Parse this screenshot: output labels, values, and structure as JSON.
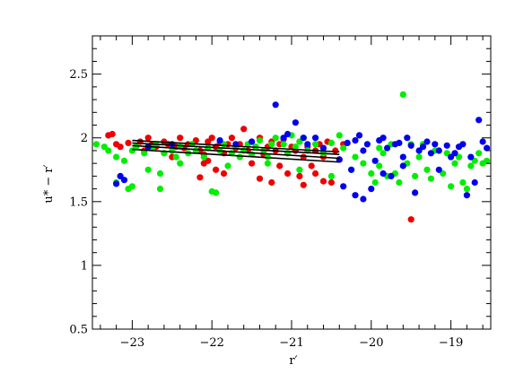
{
  "chart_data": {
    "type": "scatter",
    "title": "",
    "xlabel": "r′",
    "ylabel": "u* − r′",
    "xlim": [
      -23.5,
      -18.5
    ],
    "ylim": [
      0.5,
      2.8
    ],
    "x_ticks": [
      "−23",
      "−22",
      "−21",
      "−20",
      "−19"
    ],
    "y_ticks": [
      "0.5",
      "1",
      "1.5",
      "2",
      "2.5"
    ],
    "grid": false,
    "legend": "none",
    "colors": {
      "red": "#ee0000",
      "green": "#00ee00",
      "blue": "#0000ee",
      "line": "#000000",
      "axis": "#000000"
    },
    "series": [
      {
        "color": "#ee0000",
        "points": [
          [
            -23.3,
            2.02
          ],
          [
            -23.25,
            2.03
          ],
          [
            -23.2,
            1.95
          ],
          [
            -23.15,
            1.93
          ],
          [
            -23.05,
            1.96
          ],
          [
            -22.9,
            1.97
          ],
          [
            -22.85,
            1.9
          ],
          [
            -22.8,
            2.0
          ],
          [
            -22.75,
            1.95
          ],
          [
            -22.7,
            1.93
          ],
          [
            -22.6,
            1.97
          ],
          [
            -22.55,
            1.95
          ],
          [
            -22.45,
            1.93
          ],
          [
            -22.4,
            2.0
          ],
          [
            -22.35,
            1.92
          ],
          [
            -22.3,
            1.95
          ],
          [
            -22.2,
            1.98
          ],
          [
            -22.15,
            1.9
          ],
          [
            -22.1,
            1.87
          ],
          [
            -22.05,
            1.97
          ],
          [
            -22.0,
            2.0
          ],
          [
            -21.95,
            1.93
          ],
          [
            -21.9,
            1.96
          ],
          [
            -21.85,
            1.88
          ],
          [
            -21.8,
            1.95
          ],
          [
            -21.75,
            2.0
          ],
          [
            -21.7,
            1.92
          ],
          [
            -21.65,
            1.95
          ],
          [
            -21.6,
            2.07
          ],
          [
            -21.55,
            1.9
          ],
          [
            -21.5,
            1.97
          ],
          [
            -21.45,
            1.93
          ],
          [
            -21.4,
            2.0
          ],
          [
            -21.35,
            1.87
          ],
          [
            -21.3,
            1.93
          ],
          [
            -21.25,
            1.97
          ],
          [
            -21.2,
            1.9
          ],
          [
            -21.15,
            1.95
          ],
          [
            -21.1,
            1.99
          ],
          [
            -21.05,
            1.88
          ],
          [
            -21.0,
            1.93
          ],
          [
            -20.95,
            1.9
          ],
          [
            -20.9,
            1.97
          ],
          [
            -20.85,
            1.85
          ],
          [
            -20.8,
            1.93
          ],
          [
            -20.75,
            1.78
          ],
          [
            -20.7,
            1.9
          ],
          [
            -20.65,
            1.95
          ],
          [
            -20.6,
            1.85
          ],
          [
            -20.55,
            1.97
          ],
          [
            -20.5,
            1.65
          ],
          [
            -20.45,
            1.9
          ],
          [
            -20.4,
            1.83
          ],
          [
            -20.35,
            1.95
          ],
          [
            -22.5,
            1.85
          ],
          [
            -22.05,
            1.82
          ],
          [
            -21.95,
            1.75
          ],
          [
            -21.5,
            1.8
          ],
          [
            -21.25,
            1.65
          ],
          [
            -21.05,
            1.72
          ],
          [
            -20.9,
            1.7
          ],
          [
            -20.7,
            1.72
          ],
          [
            -20.6,
            1.66
          ],
          [
            -21.4,
            1.68
          ],
          [
            -22.1,
            1.8
          ],
          [
            -21.85,
            1.72
          ],
          [
            -22.15,
            1.69
          ],
          [
            -22.6,
            1.88
          ],
          [
            -20.85,
            1.63
          ],
          [
            -21.15,
            1.78
          ],
          [
            -19.5,
            1.36
          ]
        ]
      },
      {
        "color": "#00ee00",
        "points": [
          [
            -23.45,
            1.95
          ],
          [
            -23.35,
            1.93
          ],
          [
            -23.3,
            1.9
          ],
          [
            -23.2,
            1.85
          ],
          [
            -23.1,
            1.82
          ],
          [
            -23.05,
            1.6
          ],
          [
            -23.0,
            1.9
          ],
          [
            -22.95,
            1.93
          ],
          [
            -22.85,
            1.88
          ],
          [
            -22.75,
            1.92
          ],
          [
            -22.7,
            1.95
          ],
          [
            -22.65,
            1.6
          ],
          [
            -22.6,
            1.88
          ],
          [
            -22.5,
            1.9
          ],
          [
            -22.45,
            1.85
          ],
          [
            -22.4,
            1.93
          ],
          [
            -22.3,
            1.88
          ],
          [
            -22.25,
            1.95
          ],
          [
            -22.2,
            1.9
          ],
          [
            -22.1,
            1.85
          ],
          [
            -22.05,
            1.92
          ],
          [
            -22.0,
            1.58
          ],
          [
            -21.95,
            1.57
          ],
          [
            -21.9,
            1.9
          ],
          [
            -21.85,
            1.95
          ],
          [
            -21.75,
            1.88
          ],
          [
            -21.7,
            1.93
          ],
          [
            -21.65,
            1.85
          ],
          [
            -21.6,
            1.9
          ],
          [
            -21.55,
            1.95
          ],
          [
            -21.5,
            1.87
          ],
          [
            -21.45,
            1.93
          ],
          [
            -21.4,
            1.98
          ],
          [
            -21.35,
            1.9
          ],
          [
            -21.3,
            1.85
          ],
          [
            -21.25,
            1.95
          ],
          [
            -21.2,
            2.0
          ],
          [
            -21.1,
            1.95
          ],
          [
            -21.05,
            1.88
          ],
          [
            -21.0,
            2.02
          ],
          [
            -20.95,
            1.93
          ],
          [
            -20.9,
            1.97
          ],
          [
            -20.85,
            2.0
          ],
          [
            -20.8,
            1.9
          ],
          [
            -20.7,
            1.95
          ],
          [
            -20.6,
            1.88
          ],
          [
            -20.5,
            1.96
          ],
          [
            -20.4,
            2.02
          ],
          [
            -20.35,
            1.92
          ],
          [
            -20.25,
            1.75
          ],
          [
            -20.2,
            1.85
          ],
          [
            -20.1,
            1.8
          ],
          [
            -20.0,
            1.72
          ],
          [
            -19.95,
            1.65
          ],
          [
            -19.9,
            1.78
          ],
          [
            -19.85,
            1.88
          ],
          [
            -19.8,
            1.7
          ],
          [
            -19.75,
            1.95
          ],
          [
            -19.7,
            1.72
          ],
          [
            -19.65,
            1.65
          ],
          [
            -19.6,
            2.34
          ],
          [
            -19.55,
            1.8
          ],
          [
            -19.5,
            1.95
          ],
          [
            -19.45,
            1.7
          ],
          [
            -19.4,
            1.85
          ],
          [
            -19.3,
            1.75
          ],
          [
            -19.25,
            1.68
          ],
          [
            -19.2,
            1.9
          ],
          [
            -19.1,
            1.72
          ],
          [
            -19.05,
            1.88
          ],
          [
            -19.0,
            1.62
          ],
          [
            -18.95,
            1.8
          ],
          [
            -18.9,
            1.85
          ],
          [
            -18.85,
            1.65
          ],
          [
            -18.75,
            1.78
          ],
          [
            -18.7,
            1.82
          ],
          [
            -18.65,
            1.88
          ],
          [
            -18.6,
            1.8
          ],
          [
            -18.55,
            1.82
          ],
          [
            -22.8,
            1.75
          ],
          [
            -22.65,
            1.72
          ],
          [
            -23.2,
            1.65
          ],
          [
            -23.0,
            1.62
          ],
          [
            -22.4,
            1.8
          ],
          [
            -21.8,
            1.78
          ],
          [
            -21.3,
            1.8
          ],
          [
            -20.9,
            1.75
          ],
          [
            -20.5,
            1.7
          ],
          [
            -19.9,
            1.92
          ],
          [
            -19.35,
            1.95
          ],
          [
            -18.8,
            1.6
          ]
        ]
      },
      {
        "color": "#0000ee",
        "points": [
          [
            -23.2,
            1.64
          ],
          [
            -23.15,
            1.7
          ],
          [
            -23.1,
            1.67
          ],
          [
            -22.8,
            1.93
          ],
          [
            -22.5,
            1.95
          ],
          [
            -21.9,
            1.98
          ],
          [
            -21.7,
            1.95
          ],
          [
            -21.5,
            1.97
          ],
          [
            -21.2,
            2.26
          ],
          [
            -21.1,
            2.0
          ],
          [
            -21.05,
            2.03
          ],
          [
            -20.95,
            2.12
          ],
          [
            -20.85,
            2.0
          ],
          [
            -20.8,
            1.95
          ],
          [
            -20.7,
            2.0
          ],
          [
            -20.6,
            1.92
          ],
          [
            -20.4,
            1.83
          ],
          [
            -20.3,
            1.96
          ],
          [
            -20.25,
            1.75
          ],
          [
            -20.2,
            1.98
          ],
          [
            -20.15,
            2.02
          ],
          [
            -20.1,
            1.9
          ],
          [
            -20.05,
            1.95
          ],
          [
            -20.0,
            1.6
          ],
          [
            -19.95,
            1.82
          ],
          [
            -19.9,
            1.98
          ],
          [
            -19.85,
            2.0
          ],
          [
            -19.8,
            1.92
          ],
          [
            -19.75,
            1.7
          ],
          [
            -19.7,
            1.95
          ],
          [
            -19.65,
            1.96
          ],
          [
            -19.6,
            1.85
          ],
          [
            -19.55,
            2.0
          ],
          [
            -19.5,
            1.94
          ],
          [
            -19.45,
            1.57
          ],
          [
            -19.4,
            1.9
          ],
          [
            -19.35,
            1.93
          ],
          [
            -19.3,
            1.97
          ],
          [
            -19.25,
            1.88
          ],
          [
            -19.2,
            1.95
          ],
          [
            -19.15,
            1.9
          ],
          [
            -19.05,
            1.94
          ],
          [
            -19.0,
            1.85
          ],
          [
            -18.9,
            1.93
          ],
          [
            -18.85,
            1.95
          ],
          [
            -18.8,
            1.55
          ],
          [
            -18.75,
            1.85
          ],
          [
            -18.7,
            1.65
          ],
          [
            -18.65,
            2.14
          ],
          [
            -18.6,
            1.97
          ],
          [
            -18.55,
            1.92
          ],
          [
            -20.35,
            1.62
          ],
          [
            -20.2,
            1.55
          ],
          [
            -20.1,
            1.52
          ],
          [
            -19.6,
            1.78
          ],
          [
            -19.15,
            1.75
          ],
          [
            -18.95,
            1.88
          ],
          [
            -19.85,
            1.72
          ]
        ]
      }
    ],
    "fit_lines": [
      [
        [
          -23.0,
          1.96
        ],
        [
          -20.4,
          1.87
        ]
      ],
      [
        [
          -23.0,
          1.94
        ],
        [
          -20.4,
          1.84
        ]
      ],
      [
        [
          -23.0,
          1.91
        ],
        [
          -20.4,
          1.81
        ]
      ],
      [
        [
          -23.0,
          1.98
        ],
        [
          -20.4,
          1.89
        ]
      ]
    ]
  }
}
